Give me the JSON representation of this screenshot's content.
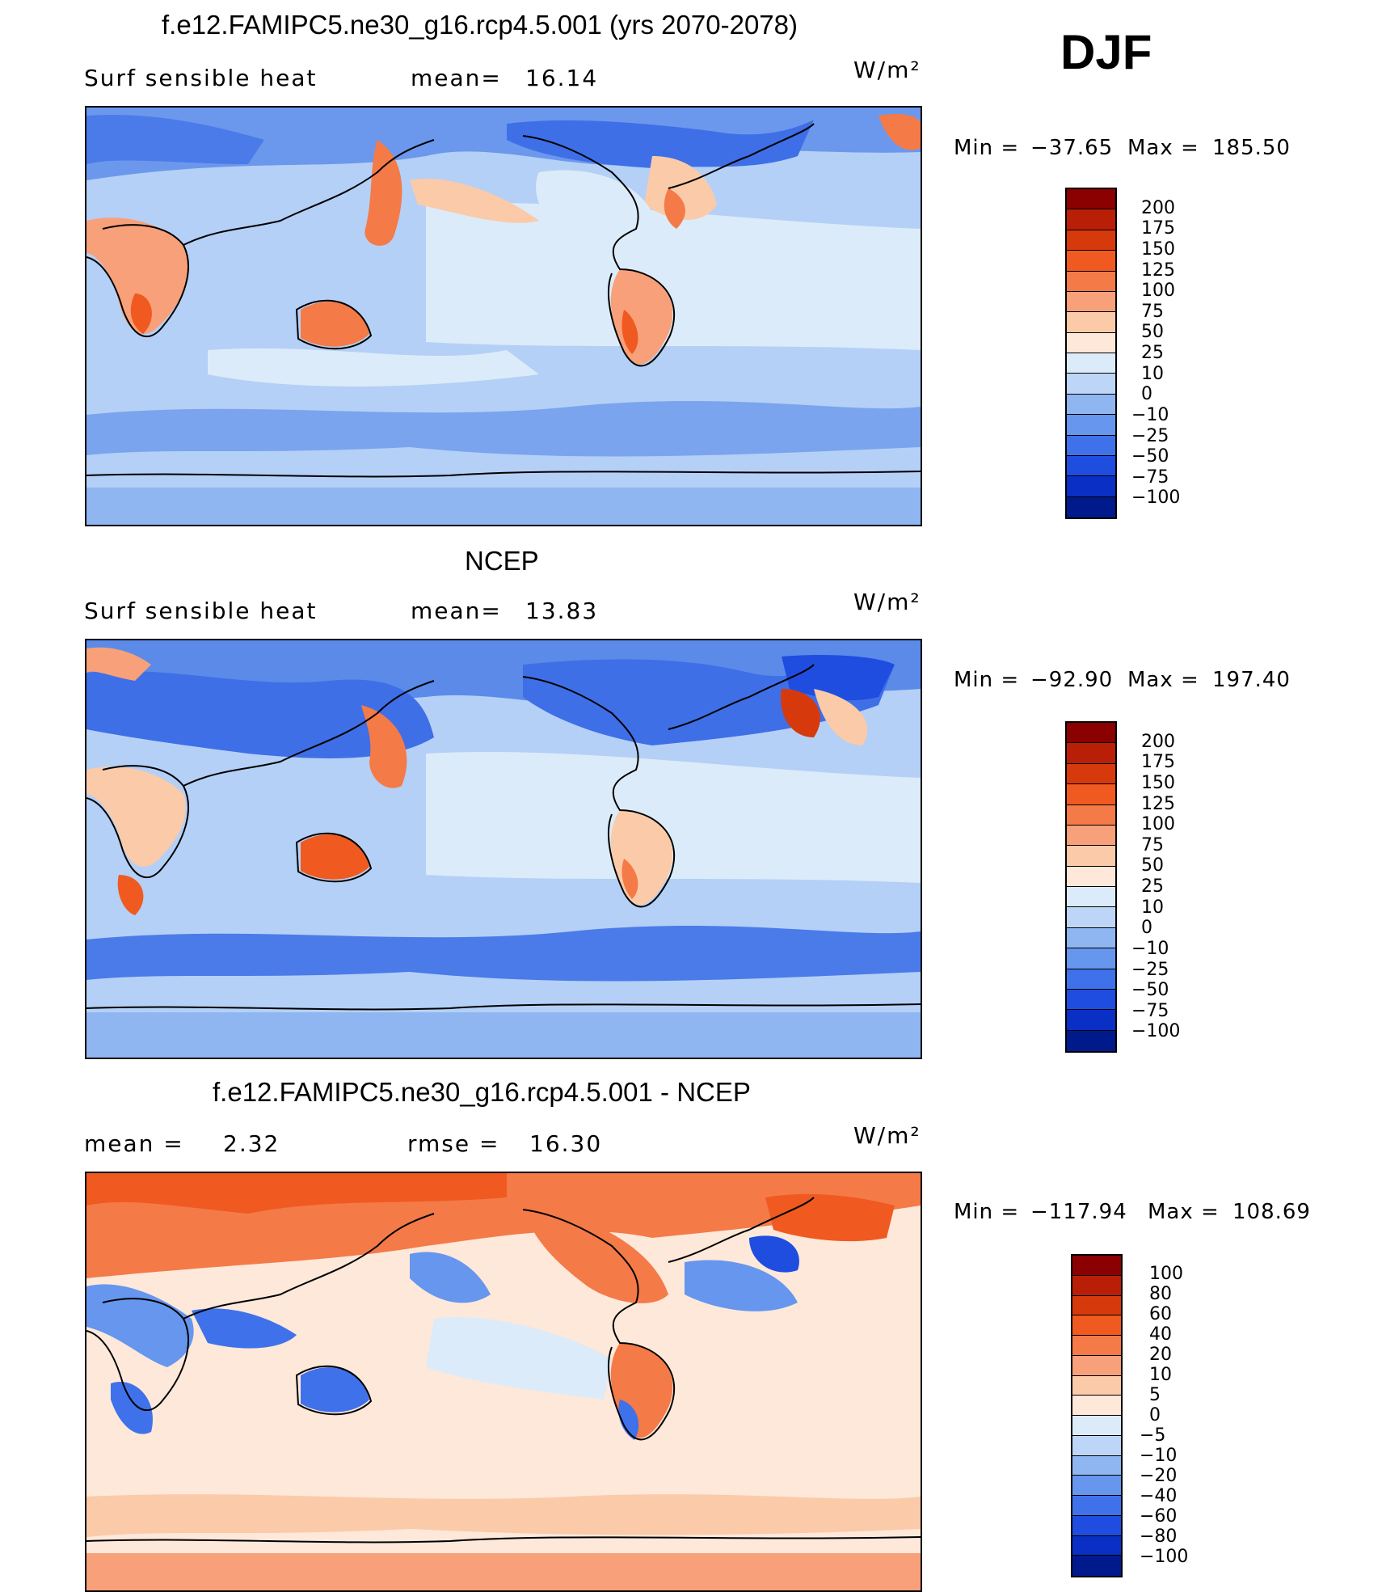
{
  "season": "DJF",
  "panels": [
    {
      "id": "model",
      "title": "f.e12.FAMIPC5.ne30_g16.rcp4.5.001 (yrs 2070-2078)",
      "variable": "Surf sensible heat",
      "stat1_label": "mean=",
      "stat1_value": "16.14",
      "stat2_label": "",
      "stat2_value": "",
      "units": "W/m²",
      "min_label": "Min =",
      "min_value": "−37.65",
      "max_label": "Max =",
      "max_value": "185.50",
      "colorbar": {
        "colors": [
          "#8b0000",
          "#b91f06",
          "#d63a0c",
          "#f05a20",
          "#f47a48",
          "#f7a07a",
          "#fbcaa8",
          "#fde8da",
          "#dcebf9",
          "#bdd6f7",
          "#90b6f2",
          "#6696ee",
          "#3f72ea",
          "#1f4de0",
          "#0a2fc4",
          "#001a8c"
        ],
        "labels": [
          "200",
          "175",
          "150",
          "125",
          "100",
          "75",
          "50",
          "25",
          "10",
          "0",
          "−10",
          "−25",
          "−50",
          "−75",
          "−100"
        ]
      }
    },
    {
      "id": "obs",
      "title": "NCEP",
      "variable": "Surf sensible heat",
      "stat1_label": "mean=",
      "stat1_value": "13.83",
      "stat2_label": "",
      "stat2_value": "",
      "units": "W/m²",
      "min_label": "Min =",
      "min_value": "−92.90",
      "max_label": "Max =",
      "max_value": "197.40",
      "colorbar": {
        "colors": [
          "#8b0000",
          "#b91f06",
          "#d63a0c",
          "#f05a20",
          "#f47a48",
          "#f7a07a",
          "#fbcaa8",
          "#fde8da",
          "#dcebf9",
          "#bdd6f7",
          "#90b6f2",
          "#6696ee",
          "#3f72ea",
          "#1f4de0",
          "#0a2fc4",
          "#001a8c"
        ],
        "labels": [
          "200",
          "175",
          "150",
          "125",
          "100",
          "75",
          "50",
          "25",
          "10",
          "0",
          "−10",
          "−25",
          "−50",
          "−75",
          "−100"
        ]
      }
    },
    {
      "id": "diff",
      "title": "f.e12.FAMIPC5.ne30_g16.rcp4.5.001 - NCEP",
      "variable": "",
      "stat1_label": "mean =",
      "stat1_value": "2.32",
      "stat2_label": "rmse =",
      "stat2_value": "16.30",
      "units": "W/m²",
      "min_label": "Min =",
      "min_value": "−117.94",
      "max_label": "Max =",
      "max_value": "108.69",
      "colorbar": {
        "colors": [
          "#8b0000",
          "#b91f06",
          "#d63a0c",
          "#f05a20",
          "#f47a48",
          "#f7a07a",
          "#fbcaa8",
          "#fde8da",
          "#dcebf9",
          "#bdd6f7",
          "#90b6f2",
          "#6696ee",
          "#3f72ea",
          "#1f4de0",
          "#0a2fc4",
          "#001a8c"
        ],
        "labels": [
          "100",
          "80",
          "60",
          "40",
          "20",
          "10",
          "5",
          "0",
          "−5",
          "−10",
          "−20",
          "−40",
          "−60",
          "−80",
          "−100"
        ]
      }
    }
  ]
}
